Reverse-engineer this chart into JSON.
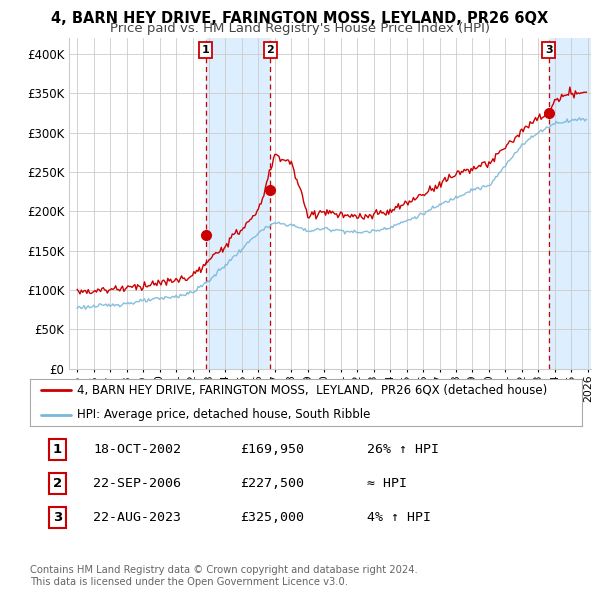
{
  "title": "4, BARN HEY DRIVE, FARINGTON MOSS, LEYLAND, PR26 6QX",
  "subtitle": "Price paid vs. HM Land Registry's House Price Index (HPI)",
  "ylabel_ticks": [
    "£0",
    "£50K",
    "£100K",
    "£150K",
    "£200K",
    "£250K",
    "£300K",
    "£350K",
    "£400K"
  ],
  "ytick_vals": [
    0,
    50000,
    100000,
    150000,
    200000,
    250000,
    300000,
    350000,
    400000
  ],
  "ylim": [
    0,
    420000
  ],
  "xlim_start": 1994.5,
  "xlim_end": 2026.2,
  "hpi_color": "#7ab8d9",
  "price_color": "#cc0000",
  "shade_color": "#ddeeff",
  "vline_color": "#cc0000",
  "grid_color": "#cccccc",
  "bg_color": "#ffffff",
  "sales": [
    {
      "label": "1",
      "date_num": 2002.8,
      "price": 169950
    },
    {
      "label": "2",
      "date_num": 2006.73,
      "price": 227500
    },
    {
      "label": "3",
      "date_num": 2023.64,
      "price": 325000
    }
  ],
  "legend_line1": "4, BARN HEY DRIVE, FARINGTON MOSS,  LEYLAND,  PR26 6QX (detached house)",
  "legend_line2": "HPI: Average price, detached house, South Ribble",
  "legend_color1": "#cc0000",
  "legend_color2": "#7ab8d9",
  "table_rows": [
    [
      "1",
      "18-OCT-2002",
      "£169,950",
      "26% ↑ HPI"
    ],
    [
      "2",
      "22-SEP-2006",
      "£227,500",
      "≈ HPI"
    ],
    [
      "3",
      "22-AUG-2023",
      "£325,000",
      "4% ↑ HPI"
    ]
  ],
  "footer": "Contains HM Land Registry data © Crown copyright and database right 2024.\nThis data is licensed under the Open Government Licence v3.0.",
  "title_fontsize": 10.5,
  "subtitle_fontsize": 9.5,
  "tick_fontsize": 8.5,
  "legend_fontsize": 8.5,
  "table_fontsize": 9.5
}
